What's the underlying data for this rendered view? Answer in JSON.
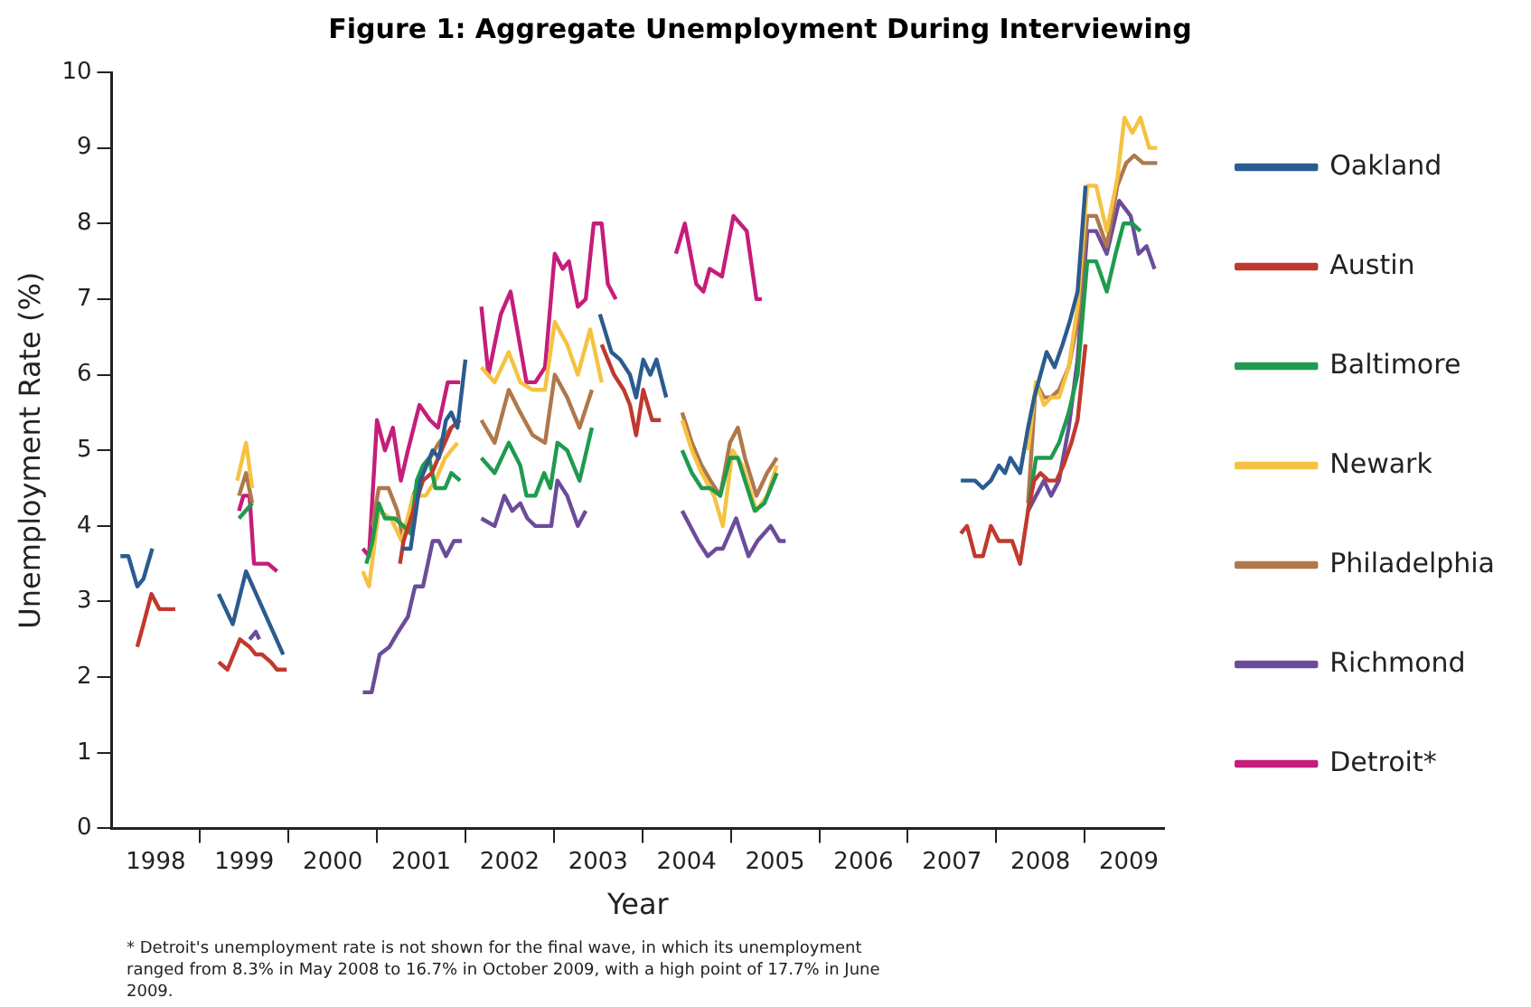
{
  "chart_data": {
    "type": "line",
    "title": "Figure 1: Aggregate Unemployment During Interviewing",
    "xlabel": "Year",
    "ylabel": "Unemployment Rate (%)",
    "xlim": [
      1998,
      2009.9
    ],
    "xticks": [
      {
        "value": 1998.5,
        "label": "1998"
      },
      {
        "value": 1999,
        "label": null
      },
      {
        "value": 1999.5,
        "label": "1999"
      },
      {
        "value": 2000,
        "label": null
      },
      {
        "value": 2000.5,
        "label": "2000"
      },
      {
        "value": 2001,
        "label": null
      },
      {
        "value": 2001.5,
        "label": "2001"
      },
      {
        "value": 2002,
        "label": null
      },
      {
        "value": 2002.5,
        "label": "2002"
      },
      {
        "value": 2003,
        "label": null
      },
      {
        "value": 2003.5,
        "label": "2003"
      },
      {
        "value": 2004,
        "label": null
      },
      {
        "value": 2004.5,
        "label": "2004"
      },
      {
        "value": 2005,
        "label": null
      },
      {
        "value": 2005.5,
        "label": "2005"
      },
      {
        "value": 2006,
        "label": null
      },
      {
        "value": 2006.5,
        "label": "2006"
      },
      {
        "value": 2007,
        "label": null
      },
      {
        "value": 2007.5,
        "label": "2007"
      },
      {
        "value": 2008,
        "label": null
      },
      {
        "value": 2008.5,
        "label": "2008"
      },
      {
        "value": 2009,
        "label": null
      },
      {
        "value": 2009.5,
        "label": "2009"
      }
    ],
    "ylim": [
      0,
      10
    ],
    "yticks": [
      0,
      1,
      2,
      3,
      4,
      5,
      6,
      7,
      8,
      9,
      10
    ],
    "grid": false,
    "legend": "right",
    "line_style": "solid",
    "marker": "none",
    "series": [
      {
        "name": "Oakland",
        "color": "#2b5b8f",
        "x": [
          1998.1,
          1998.19,
          1998.29,
          1998.36,
          1998.46,
          1998.8,
          1999.21,
          1999.37,
          1999.52,
          1999.94,
          2000.5,
          2001.28,
          2001.38,
          2001.49,
          2001.63,
          2001.7,
          2001.78,
          2001.84,
          2001.91,
          2002.0,
          2002.7,
          2003.52,
          2003.65,
          2003.75,
          2003.86,
          2003.93,
          2004.01,
          2004.09,
          2004.16,
          2004.27,
          2006,
          2007.6,
          2007.69,
          2007.76,
          2007.85,
          2007.94,
          2008.03,
          2008.1,
          2008.16,
          2008.27,
          2008.36,
          2008.43,
          2008.5,
          2008.57,
          2008.66,
          2008.75,
          2008.83,
          2008.92,
          2009.01
        ],
        "values": [
          3.6,
          3.6,
          3.2,
          3.3,
          3.7,
          null,
          3.1,
          2.7,
          3.4,
          2.3,
          null,
          3.7,
          3.7,
          4.6,
          5.0,
          4.9,
          5.4,
          5.5,
          5.3,
          6.2,
          null,
          6.8,
          6.3,
          6.2,
          6.0,
          5.7,
          6.2,
          6.0,
          6.2,
          5.7,
          null,
          4.6,
          4.6,
          4.6,
          4.5,
          4.6,
          4.8,
          4.7,
          4.9,
          4.7,
          5.3,
          5.7,
          6.0,
          6.3,
          6.1,
          6.4,
          6.7,
          7.1,
          8.5
        ]
      },
      {
        "name": "Austin",
        "color": "#c0392f",
        "x": [
          1998.29,
          1998.36,
          1998.45,
          1998.54,
          1998.61,
          1998.72,
          1998.9,
          1999.21,
          1999.31,
          1999.45,
          1999.56,
          1999.63,
          1999.7,
          1999.8,
          1999.87,
          1999.98,
          2000.5,
          2001.26,
          2001.3,
          2001.41,
          2001.52,
          2001.62,
          2001.73,
          2001.84,
          2001.94,
          2002.7,
          2003.54,
          2003.68,
          2003.79,
          2003.86,
          2003.93,
          2004.01,
          2004.11,
          2004.21,
          2006,
          2007.6,
          2007.67,
          2007.76,
          2007.85,
          2007.94,
          2008.03,
          2008.11,
          2008.18,
          2008.27,
          2008.36,
          2008.43,
          2008.5,
          2008.59,
          2008.68,
          2008.76,
          2008.85,
          2008.92,
          2009.01
        ],
        "values": [
          2.4,
          2.7,
          3.1,
          2.9,
          2.9,
          2.9,
          null,
          2.2,
          2.1,
          2.5,
          2.4,
          2.3,
          2.3,
          2.2,
          2.1,
          2.1,
          null,
          3.5,
          3.8,
          4.2,
          4.6,
          4.7,
          5.0,
          5.3,
          5.4,
          null,
          6.4,
          6.0,
          5.8,
          5.6,
          5.2,
          5.8,
          5.4,
          5.4,
          null,
          3.9,
          4.0,
          3.6,
          3.6,
          4.0,
          3.8,
          3.8,
          3.8,
          3.5,
          4.2,
          4.6,
          4.7,
          4.6,
          4.6,
          4.8,
          5.1,
          5.4,
          6.4
        ]
      },
      {
        "name": "Baltimore",
        "color": "#1e9b4f",
        "x": [
          1999.44,
          1999.59,
          2000.3,
          2000.88,
          2000.95,
          2001.02,
          2001.09,
          2001.2,
          2001.3,
          2001.38,
          2001.45,
          2001.52,
          2001.59,
          2001.66,
          2001.77,
          2001.84,
          2001.94,
          2002.05,
          2002.18,
          2002.33,
          2002.49,
          2002.62,
          2002.69,
          2002.79,
          2002.89,
          2002.96,
          2003.04,
          2003.15,
          2003.29,
          2003.43,
          2004,
          2004.45,
          2004.56,
          2004.67,
          2004.77,
          2004.88,
          2004.99,
          2005.08,
          2005.16,
          2005.27,
          2005.38,
          2005.52,
          2007,
          2008.36,
          2008.45,
          2008.54,
          2008.62,
          2008.71,
          2008.82,
          2008.92,
          2009.03,
          2009.13,
          2009.25,
          2009.35,
          2009.44,
          2009.54,
          2009.63
        ],
        "values": [
          4.1,
          4.3,
          null,
          3.5,
          3.8,
          4.3,
          4.1,
          4.1,
          4.0,
          3.9,
          4.6,
          4.8,
          4.9,
          4.5,
          4.5,
          4.7,
          4.6,
          null,
          4.9,
          4.7,
          5.1,
          4.8,
          4.4,
          4.4,
          4.7,
          4.5,
          5.1,
          5.0,
          4.6,
          5.3,
          null,
          5.0,
          4.7,
          4.5,
          4.5,
          4.4,
          4.9,
          4.9,
          4.6,
          4.2,
          4.3,
          4.7,
          null,
          4.2,
          4.9,
          4.9,
          4.9,
          5.1,
          5.5,
          6.0,
          7.5,
          7.5,
          7.1,
          7.6,
          8.0,
          8.0,
          7.9
        ]
      },
      {
        "name": "Newark",
        "color": "#f5c242",
        "x": [
          1999.42,
          1999.52,
          1999.59,
          2000.3,
          2000.84,
          2000.91,
          2001.02,
          2001.16,
          2001.28,
          2001.41,
          2001.55,
          2001.66,
          2001.77,
          2001.91,
          2002.05,
          2002.18,
          2002.33,
          2002.49,
          2002.62,
          2002.76,
          2002.9,
          2003.01,
          2003.15,
          2003.27,
          2003.41,
          2003.54,
          2004,
          2004.45,
          2004.56,
          2004.67,
          2004.81,
          2004.91,
          2005.02,
          2005.13,
          2005.29,
          2005.41,
          2005.52,
          2007,
          2008.36,
          2008.45,
          2008.54,
          2008.62,
          2008.71,
          2008.82,
          2008.92,
          2009.03,
          2009.13,
          2009.25,
          2009.37,
          2009.45,
          2009.54,
          2009.63,
          2009.73,
          2009.82
        ],
        "values": [
          4.6,
          5.1,
          4.5,
          null,
          3.4,
          3.2,
          4.2,
          4.1,
          3.8,
          4.4,
          4.4,
          4.6,
          4.9,
          5.1,
          null,
          6.1,
          5.9,
          6.3,
          5.9,
          5.8,
          5.8,
          6.7,
          6.4,
          6.0,
          6.6,
          5.9,
          null,
          5.4,
          5.0,
          4.7,
          4.4,
          4.0,
          5.0,
          4.8,
          4.2,
          4.4,
          4.8,
          null,
          5.0,
          5.9,
          5.6,
          5.7,
          5.7,
          6.1,
          6.9,
          8.5,
          8.5,
          7.9,
          8.6,
          9.4,
          9.2,
          9.4,
          9.0,
          9.0
        ]
      },
      {
        "name": "Philadelphia",
        "color": "#b0784a",
        "x": [
          1999.44,
          1999.52,
          1999.59,
          2000.3,
          2000.95,
          2001.02,
          2001.13,
          2001.23,
          2001.3,
          2001.41,
          2001.55,
          2001.7,
          2001.84,
          2002.05,
          2002.18,
          2002.33,
          2002.49,
          2002.62,
          2002.76,
          2002.9,
          2003.01,
          2003.15,
          2003.29,
          2003.43,
          2004,
          2004.45,
          2004.56,
          2004.67,
          2004.77,
          2004.88,
          2004.99,
          2005.08,
          2005.16,
          2005.29,
          2005.41,
          2005.52,
          2007,
          2008.36,
          2008.45,
          2008.54,
          2008.62,
          2008.71,
          2008.82,
          2008.92,
          2009.03,
          2009.13,
          2009.25,
          2009.37,
          2009.47,
          2009.56,
          2009.66,
          2009.82
        ],
        "values": [
          4.4,
          4.7,
          4.3,
          null,
          4.0,
          4.5,
          4.5,
          4.2,
          3.8,
          4.4,
          4.8,
          5.1,
          5.3,
          null,
          5.4,
          5.1,
          5.8,
          5.5,
          5.2,
          5.1,
          6.0,
          5.7,
          5.3,
          5.8,
          null,
          5.5,
          5.1,
          4.8,
          4.6,
          4.4,
          5.1,
          5.3,
          4.9,
          4.4,
          4.7,
          4.9,
          null,
          4.3,
          5.9,
          5.7,
          5.7,
          5.8,
          6.1,
          6.7,
          8.1,
          8.1,
          7.7,
          8.5,
          8.8,
          8.9,
          8.8,
          8.8
        ]
      },
      {
        "name": "Richmond",
        "color": "#6b4c9a",
        "x": [
          1999.56,
          1999.63,
          1999.67,
          2000.3,
          2000.84,
          2000.94,
          2001.03,
          2001.14,
          2001.24,
          2001.35,
          2001.43,
          2001.52,
          2001.63,
          2001.7,
          2001.78,
          2001.87,
          2001.96,
          2002.05,
          2002.18,
          2002.33,
          2002.44,
          2002.53,
          2002.62,
          2002.7,
          2002.79,
          2002.89,
          2002.97,
          2003.04,
          2003.15,
          2003.27,
          2003.36,
          2004,
          2004.45,
          2004.54,
          2004.63,
          2004.74,
          2004.84,
          2004.91,
          2005.06,
          2005.2,
          2005.3,
          2005.45,
          2005.55,
          2005.62,
          2007,
          2008.36,
          2008.45,
          2008.54,
          2008.62,
          2008.71,
          2008.82,
          2008.92,
          2009.03,
          2009.13,
          2009.25,
          2009.39,
          2009.52,
          2009.61,
          2009.7,
          2009.79
        ],
        "values": [
          2.5,
          2.6,
          2.5,
          null,
          1.8,
          1.8,
          2.3,
          2.4,
          2.6,
          2.8,
          3.2,
          3.2,
          3.8,
          3.8,
          3.6,
          3.8,
          3.8,
          null,
          4.1,
          4.0,
          4.4,
          4.2,
          4.3,
          4.1,
          4.0,
          4.0,
          4.0,
          4.6,
          4.4,
          4.0,
          4.2,
          null,
          4.2,
          4.0,
          3.8,
          3.6,
          3.7,
          3.7,
          4.1,
          3.6,
          3.8,
          4.0,
          3.8,
          3.8,
          null,
          4.2,
          4.4,
          4.6,
          4.4,
          4.6,
          5.3,
          6.2,
          7.9,
          7.9,
          7.6,
          8.3,
          8.1,
          7.6,
          7.7,
          7.4
        ]
      },
      {
        "name": "Detroit*",
        "color": "#c51d7c",
        "x": [
          1999.44,
          1999.49,
          1999.56,
          1999.61,
          1999.66,
          1999.77,
          1999.87,
          2000.3,
          2000.84,
          2000.91,
          2001.0,
          2001.09,
          2001.18,
          2001.27,
          2001.35,
          2001.48,
          2001.6,
          2001.69,
          2001.8,
          2001.94,
          2002.05,
          2002.18,
          2002.26,
          2002.4,
          2002.51,
          2002.69,
          2002.79,
          2002.9,
          2003.01,
          2003.1,
          2003.17,
          2003.27,
          2003.36,
          2003.45,
          2003.54,
          2003.61,
          2003.7,
          2004,
          2004.38,
          2004.48,
          2004.61,
          2004.69,
          2004.76,
          2004.9,
          2005.03,
          2005.18,
          2005.29,
          2005.35
        ],
        "values": [
          4.2,
          4.4,
          4.4,
          3.5,
          3.5,
          3.5,
          3.4,
          null,
          3.7,
          3.6,
          5.4,
          5.0,
          5.3,
          4.6,
          5.0,
          5.6,
          5.4,
          5.3,
          5.9,
          5.9,
          null,
          6.9,
          6.0,
          6.8,
          7.1,
          5.9,
          5.9,
          6.1,
          7.6,
          7.4,
          7.5,
          6.9,
          7.0,
          8.0,
          8.0,
          7.2,
          7.0,
          null,
          7.6,
          8.0,
          7.2,
          7.1,
          7.4,
          7.3,
          8.1,
          7.9,
          7.0,
          7.0
        ]
      }
    ],
    "annotations": [
      "* Detroit's unemployment rate is not shown for the final wave, in which its unemployment ranged from 8.3% in May 2008 to 16.7% in October 2009, with a high point of 17.7% in June 2009."
    ]
  }
}
